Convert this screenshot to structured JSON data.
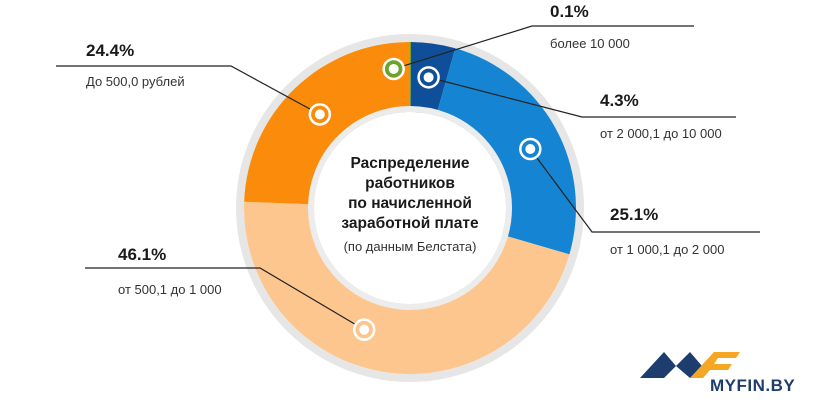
{
  "chart_data": {
    "type": "pie",
    "donut": true,
    "title_lines": [
      "Распределение",
      "работников",
      "по начисленной",
      "заработной плате"
    ],
    "subtitle": "(по данным Белстата)",
    "slices": [
      {
        "label": "более 10 000",
        "percent_label": "0.1%",
        "value": 0.1,
        "color": "#6ea32a"
      },
      {
        "label": "от 2 000,1 до 10 000",
        "percent_label": "4.3%",
        "value": 4.3,
        "color": "#0f4f9a"
      },
      {
        "label": "от 1 000,1 до 2 000",
        "percent_label": "25.1%",
        "value": 25.1,
        "color": "#1585d3"
      },
      {
        "label": "от 500,1 до 1 000",
        "percent_label": "46.1%",
        "value": 46.1,
        "color": "#fcc68e"
      },
      {
        "label": "До 500,0 рублей",
        "percent_label": "24.4%",
        "value": 24.4,
        "color": "#fb8c0b"
      }
    ]
  },
  "brand": {
    "logo_text": "MYFIN.BY",
    "logo_colors": [
      "#1c3d6e",
      "#f5a623"
    ]
  }
}
